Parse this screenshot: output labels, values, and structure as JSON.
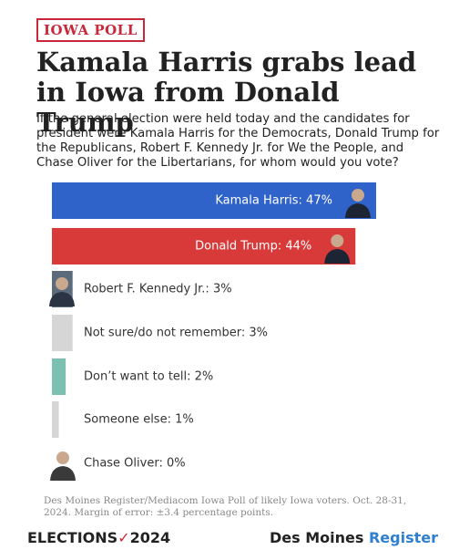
{
  "tag": "IOWA POLL",
  "chart_data": {
    "type": "hbar",
    "title": "Kamala Harris grabs lead in Iowa from Donald Trump",
    "subtitle": "If the general election were held today and the candidates for president were Kamala Harris for the Democrats, Donald Trump for the Republicans, Robert F. Kennedy Jr. for We the People, and Chase Oliver for the Libertarians, for whom would you vote?",
    "values": [
      47,
      44,
      3,
      3,
      2,
      1,
      0
    ],
    "value_labels": [
      "Kamala Harris: 47%",
      "Donald Trump: 44%",
      "Robert F. Kennedy Jr.: 3%",
      "Not sure/do not remember: 3%",
      "Don’t want to tell: 2%",
      "Someone else: 1%",
      "Chase Oliver: 0%"
    ],
    "colors": [
      "#2f63c9",
      "#d83a3a",
      "#5b6b7b",
      "#d6d6d6",
      "#7cc0b1",
      "#d6d6d6",
      "#d6d6d6"
    ],
    "xlim": [
      0,
      50
    ],
    "source": "Des Moines Register/Mediacom Iowa Poll of likely Iowa voters. Oct. 28-31, 2024. Margin of error: ±3.4 percentage points."
  },
  "footer": {
    "left": "ELECTIONS",
    "left_year": "2024",
    "right": "Des Moines",
    "right_accent": "Register"
  }
}
